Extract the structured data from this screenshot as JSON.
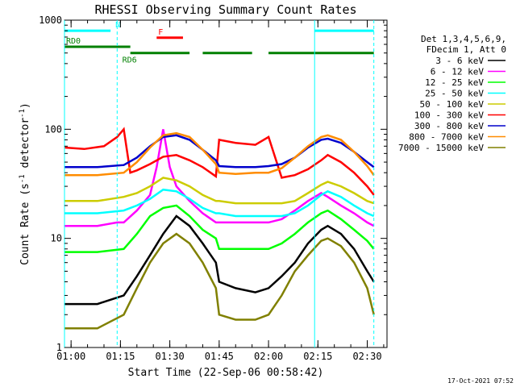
{
  "chart_data": {
    "type": "line",
    "title": "RHESSI Observing Summary Count Rates",
    "xlabel": "Start Time (22-Sep-06 00:58:42)",
    "ylabel_main": "Count Rate (s",
    "ylabel_sup1": "-1",
    "ylabel_mid": " detector",
    "ylabel_sup2": "-1",
    "ylabel_end": ")",
    "yscale": "log",
    "ylim": [
      1,
      1000
    ],
    "xlim_min": [
      0,
      98
    ],
    "x_ticks": [
      {
        "min": 2,
        "label": "01:00"
      },
      {
        "min": 17,
        "label": "01:15"
      },
      {
        "min": 32,
        "label": "01:30"
      },
      {
        "min": 47,
        "label": "01:45"
      },
      {
        "min": 62,
        "label": "02:00"
      },
      {
        "min": 77,
        "label": "02:15"
      },
      {
        "min": 92,
        "label": "02:30"
      }
    ],
    "y_ticks": [
      {
        "value": 1,
        "label": "1"
      },
      {
        "value": 10,
        "label": "10"
      },
      {
        "value": 100,
        "label": "100"
      },
      {
        "value": 1000,
        "label": "1000"
      }
    ],
    "legend_header": [
      "Det 1,3,4,5,6,9,",
      "FDecim 1, Att 0"
    ],
    "series": [
      {
        "name": "3 - 6 keV",
        "color": "#000000",
        "x": [
          0,
          10,
          18,
          22,
          26,
          30,
          34,
          38,
          42,
          46,
          47,
          52,
          58,
          62,
          66,
          70,
          74,
          78,
          80,
          84,
          88,
          92,
          94
        ],
        "y": [
          2.5,
          2.5,
          3.0,
          4.5,
          7,
          11,
          16,
          13,
          9,
          6,
          4,
          3.5,
          3.2,
          3.5,
          4.5,
          6,
          9,
          12,
          13,
          11,
          8,
          5,
          4
        ]
      },
      {
        "name": "6 - 12 keV",
        "color": "#ff00ff",
        "x": [
          0,
          10,
          16,
          18,
          22,
          26,
          28,
          30,
          32,
          34,
          38,
          42,
          46,
          47,
          52,
          58,
          62,
          66,
          70,
          74,
          78,
          80,
          84,
          88,
          92,
          94
        ],
        "y": [
          13,
          13,
          14,
          14,
          18,
          25,
          45,
          100,
          45,
          30,
          22,
          17,
          14,
          14,
          14,
          14,
          14,
          15,
          18,
          22,
          26,
          24,
          20,
          17,
          14,
          13
        ]
      },
      {
        "name": "12 - 25 keV",
        "color": "#00ff00",
        "x": [
          0,
          10,
          18,
          22,
          26,
          30,
          34,
          38,
          42,
          46,
          47,
          52,
          58,
          62,
          66,
          70,
          74,
          78,
          80,
          84,
          88,
          92,
          94
        ],
        "y": [
          7.5,
          7.5,
          8,
          11,
          16,
          19,
          20,
          16,
          12,
          10,
          8,
          8,
          8,
          8,
          9,
          11,
          14,
          17,
          18,
          15,
          12,
          9.5,
          8
        ]
      },
      {
        "name": "25 - 50 keV",
        "color": "#00ffff",
        "x": [
          0,
          10,
          18,
          22,
          26,
          30,
          34,
          38,
          42,
          46,
          47,
          52,
          58,
          62,
          66,
          70,
          74,
          78,
          80,
          84,
          88,
          92,
          94
        ],
        "y": [
          17,
          17,
          18,
          20,
          23,
          28,
          27,
          23,
          19,
          17,
          17,
          16,
          16,
          16,
          16,
          17,
          20,
          25,
          27,
          24,
          20,
          17,
          16
        ]
      },
      {
        "name": "50 - 100 keV",
        "color": "#cccc00",
        "x": [
          0,
          10,
          18,
          22,
          26,
          30,
          34,
          38,
          42,
          46,
          47,
          52,
          58,
          62,
          66,
          70,
          74,
          78,
          80,
          84,
          88,
          92,
          94
        ],
        "y": [
          22,
          22,
          24,
          26,
          30,
          36,
          34,
          30,
          25,
          22,
          22,
          21,
          21,
          21,
          21,
          22,
          26,
          31,
          33,
          30,
          26,
          22,
          21
        ]
      },
      {
        "name": "100 - 300 keV",
        "color": "#ff0000",
        "x": [
          0,
          6,
          12,
          16,
          18,
          20,
          22,
          26,
          30,
          34,
          38,
          42,
          46,
          47,
          52,
          58,
          62,
          66,
          70,
          74,
          78,
          80,
          84,
          88,
          92,
          94
        ],
        "y": [
          68,
          66,
          70,
          85,
          100,
          40,
          42,
          48,
          56,
          58,
          52,
          45,
          37,
          80,
          75,
          72,
          85,
          36,
          38,
          43,
          52,
          58,
          50,
          40,
          30,
          25
        ]
      },
      {
        "name": "300 - 800 keV",
        "color": "#0000cc",
        "x": [
          0,
          10,
          18,
          22,
          26,
          30,
          34,
          38,
          42,
          46,
          47,
          52,
          58,
          62,
          66,
          70,
          74,
          78,
          80,
          84,
          88,
          92,
          94
        ],
        "y": [
          45,
          45,
          47,
          55,
          70,
          85,
          88,
          80,
          65,
          52,
          46,
          45,
          45,
          46,
          48,
          55,
          68,
          80,
          82,
          75,
          62,
          50,
          45
        ]
      },
      {
        "name": "800 - 7000 keV",
        "color": "#ff8c00",
        "x": [
          0,
          10,
          18,
          22,
          26,
          30,
          34,
          38,
          42,
          46,
          47,
          52,
          58,
          62,
          66,
          70,
          74,
          78,
          80,
          84,
          88,
          92,
          94
        ],
        "y": [
          38,
          38,
          40,
          50,
          68,
          88,
          92,
          85,
          65,
          48,
          40,
          39,
          40,
          40,
          44,
          55,
          70,
          85,
          88,
          80,
          62,
          46,
          38
        ]
      },
      {
        "name": "7000 - 15000 keV",
        "color": "#808000",
        "x": [
          0,
          10,
          18,
          22,
          26,
          30,
          34,
          38,
          42,
          46,
          47,
          52,
          58,
          62,
          66,
          70,
          74,
          78,
          80,
          84,
          88,
          92,
          94
        ],
        "y": [
          1.5,
          1.5,
          2.0,
          3.5,
          6,
          9,
          11,
          9,
          6,
          3.5,
          2,
          1.8,
          1.8,
          2,
          3,
          5,
          7,
          9.5,
          10,
          8.5,
          6,
          3.5,
          2
        ]
      }
    ],
    "flag_bars": [
      {
        "label": "N",
        "color": "#00ffff",
        "level": 800,
        "segments": [
          [
            0,
            14
          ],
          [
            76,
            94
          ]
        ]
      },
      {
        "label": "F",
        "color": "#ff0000",
        "level": 690,
        "segments": [
          [
            28,
            36
          ]
        ]
      },
      {
        "label": "RD0",
        "color": "#008000",
        "level": 570,
        "segments": [
          [
            0,
            20
          ]
        ]
      },
      {
        "label": "RD6",
        "color": "#008000",
        "level": 500,
        "segments": [
          [
            20,
            38
          ],
          [
            42,
            57
          ],
          [
            62,
            94
          ]
        ]
      }
    ],
    "vertical_lines_min": [
      {
        "min": 0,
        "style": "solid"
      },
      {
        "min": 16,
        "style": "dashed"
      },
      {
        "min": 76,
        "style": "solid"
      },
      {
        "min": 94,
        "style": "dashed"
      }
    ],
    "grid": false,
    "legend_position": "right"
  },
  "timestamp": "17-Oct-2021 07:52"
}
